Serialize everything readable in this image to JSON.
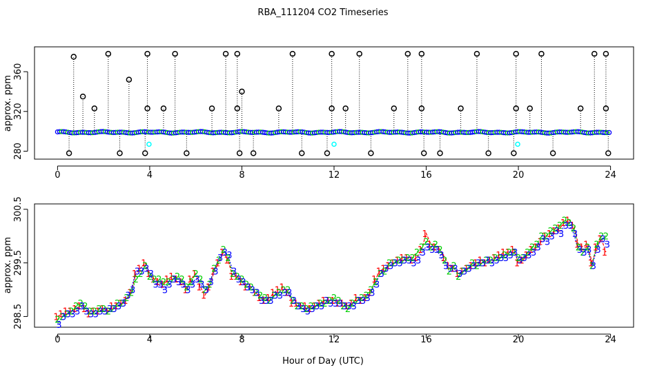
{
  "chart_data": {
    "title": "RBA_111204  CO2 Timeseries",
    "xlabel": "Hour of Day (UTC)",
    "colors": {
      "axis": "#000000",
      "series1": "#ff0000",
      "series2": "#00cc00",
      "series3": "#0000ff",
      "flag": "#00ffff",
      "outlier": "#000000"
    },
    "panels": [
      {
        "type": "scatter",
        "ylabel": "approx. ppm",
        "xlim": [
          -1,
          25
        ],
        "ylim": [
          272,
          385
        ],
        "xticks": [
          0,
          4,
          8,
          12,
          16,
          20,
          24
        ],
        "yticks": [
          280,
          320,
          360
        ],
        "baseline": 299,
        "high_spikes": [
          [
            0.7,
            375
          ],
          [
            1.1,
            335
          ],
          [
            1.6,
            323
          ],
          [
            2.2,
            378
          ],
          [
            3.1,
            352
          ],
          [
            3.9,
            378
          ],
          [
            3.9,
            323
          ],
          [
            4.6,
            323
          ],
          [
            5.1,
            378
          ],
          [
            6.7,
            323
          ],
          [
            7.3,
            378
          ],
          [
            7.8,
            378
          ],
          [
            7.8,
            323
          ],
          [
            8.0,
            340
          ],
          [
            9.6,
            323
          ],
          [
            10.2,
            378
          ],
          [
            11.9,
            378
          ],
          [
            11.9,
            323
          ],
          [
            12.5,
            323
          ],
          [
            13.1,
            378
          ],
          [
            14.6,
            323
          ],
          [
            15.2,
            378
          ],
          [
            15.8,
            378
          ],
          [
            15.8,
            323
          ],
          [
            17.5,
            323
          ],
          [
            18.2,
            378
          ],
          [
            19.9,
            378
          ],
          [
            19.9,
            323
          ],
          [
            20.5,
            323
          ],
          [
            21.0,
            378
          ],
          [
            22.7,
            323
          ],
          [
            23.3,
            378
          ],
          [
            23.8,
            378
          ],
          [
            23.8,
            323
          ]
        ],
        "low_spikes": [
          [
            0.5,
            278
          ],
          [
            2.7,
            278
          ],
          [
            3.8,
            278
          ],
          [
            5.6,
            278
          ],
          [
            7.9,
            278
          ],
          [
            8.5,
            278
          ],
          [
            10.6,
            278
          ],
          [
            11.7,
            278
          ],
          [
            13.6,
            278
          ],
          [
            15.9,
            278
          ],
          [
            16.6,
            278
          ],
          [
            18.7,
            278
          ],
          [
            19.8,
            278
          ],
          [
            21.5,
            278
          ],
          [
            23.9,
            278
          ]
        ],
        "flagged_points": [
          [
            3.97,
            287
          ],
          [
            12.0,
            287
          ],
          [
            19.97,
            287
          ]
        ],
        "mark_legend": [
          "o",
          "o",
          "o"
        ]
      },
      {
        "type": "line",
        "ylabel": "approx. ppm",
        "xlim": [
          -1,
          25
        ],
        "ylim": [
          298.3,
          300.6
        ],
        "xticks": [
          0,
          4,
          8,
          12,
          16,
          20,
          24
        ],
        "yticks": [
          298.5,
          299.5,
          300.5
        ],
        "ytick_labels": [
          "298.5",
          "299.5",
          "300.5"
        ],
        "series_labels": [
          "1",
          "2",
          "3"
        ],
        "x": [
          0,
          0.2,
          0.4,
          0.6,
          0.8,
          1.0,
          1.2,
          1.4,
          1.6,
          1.8,
          2.0,
          2.2,
          2.4,
          2.6,
          2.8,
          3.0,
          3.2,
          3.4,
          3.6,
          3.8,
          4.0,
          4.2,
          4.4,
          4.6,
          4.8,
          5.0,
          5.2,
          5.4,
          5.6,
          5.8,
          6.0,
          6.2,
          6.4,
          6.6,
          6.8,
          7.0,
          7.2,
          7.4,
          7.6,
          7.8,
          8.0,
          8.2,
          8.4,
          8.6,
          8.8,
          9.0,
          9.2,
          9.4,
          9.6,
          9.8,
          10.0,
          10.2,
          10.4,
          10.6,
          10.8,
          11.0,
          11.2,
          11.4,
          11.6,
          11.8,
          12.0,
          12.2,
          12.4,
          12.6,
          12.8,
          13.0,
          13.2,
          13.4,
          13.6,
          13.8,
          14.0,
          14.2,
          14.4,
          14.6,
          14.8,
          15.0,
          15.2,
          15.4,
          15.6,
          15.8,
          16.0,
          16.2,
          16.4,
          16.6,
          16.8,
          17.0,
          17.2,
          17.4,
          17.6,
          17.8,
          18.0,
          18.2,
          18.4,
          18.6,
          18.8,
          19.0,
          19.2,
          19.4,
          19.6,
          19.8,
          20.0,
          20.2,
          20.4,
          20.6,
          20.8,
          21.0,
          21.2,
          21.4,
          21.6,
          21.8,
          22.0,
          22.2,
          22.4,
          22.6,
          22.8,
          23.0,
          23.2,
          23.4,
          23.6,
          23.8
        ],
        "series": [
          {
            "name": "1",
            "values": [
              298.5,
              298.55,
              298.6,
              298.6,
              298.65,
              298.7,
              298.65,
              298.55,
              298.6,
              298.6,
              298.65,
              298.6,
              298.7,
              298.7,
              298.75,
              298.8,
              298.95,
              299.3,
              299.4,
              299.5,
              299.3,
              299.2,
              299.15,
              299.1,
              299.2,
              299.25,
              299.2,
              299.15,
              299.0,
              299.2,
              299.3,
              299.05,
              298.9,
              299.05,
              299.35,
              299.5,
              299.7,
              299.55,
              299.25,
              299.25,
              299.15,
              299.05,
              299.05,
              298.95,
              298.85,
              298.8,
              298.85,
              298.95,
              299.0,
              299.05,
              298.95,
              298.75,
              298.75,
              298.7,
              298.7,
              298.65,
              298.7,
              298.75,
              298.8,
              298.8,
              298.8,
              298.75,
              298.75,
              298.7,
              298.75,
              298.85,
              298.8,
              298.85,
              298.95,
              299.2,
              299.35,
              299.4,
              299.45,
              299.5,
              299.55,
              299.6,
              299.6,
              299.55,
              299.6,
              299.75,
              300.05,
              299.85,
              299.8,
              299.75,
              299.6,
              299.45,
              299.4,
              299.3,
              299.35,
              299.4,
              299.45,
              299.5,
              299.55,
              299.5,
              299.55,
              299.6,
              299.65,
              299.7,
              299.7,
              299.75,
              299.5,
              299.55,
              299.65,
              299.75,
              299.8,
              299.9,
              300.0,
              300.05,
              300.1,
              300.15,
              300.25,
              300.3,
              300.2,
              299.85,
              299.8,
              299.85,
              299.5,
              299.8,
              299.95,
              299.7
            ]
          },
          {
            "name": "2",
            "values": [
              298.45,
              298.5,
              298.55,
              298.6,
              298.7,
              298.75,
              298.7,
              298.6,
              298.6,
              298.65,
              298.65,
              298.6,
              298.65,
              298.75,
              298.75,
              298.85,
              298.95,
              299.2,
              299.3,
              299.45,
              299.25,
              299.2,
              299.2,
              299.15,
              299.15,
              299.2,
              299.25,
              299.2,
              299.05,
              299.15,
              299.3,
              299.2,
              299.0,
              299.1,
              299.4,
              299.55,
              299.75,
              299.6,
              299.3,
              299.25,
              299.2,
              299.1,
              299.05,
              298.95,
              298.9,
              298.85,
              298.8,
              298.9,
              298.95,
              299.0,
              299.0,
              298.8,
              298.7,
              298.7,
              298.65,
              298.7,
              298.7,
              298.75,
              298.75,
              298.8,
              298.85,
              298.8,
              298.7,
              298.65,
              298.75,
              298.8,
              298.85,
              298.9,
              299.0,
              299.15,
              299.3,
              299.35,
              299.5,
              299.5,
              299.55,
              299.55,
              299.6,
              299.6,
              299.7,
              299.8,
              299.9,
              299.8,
              299.85,
              299.75,
              299.55,
              299.35,
              299.45,
              299.25,
              299.35,
              299.4,
              299.5,
              299.45,
              299.5,
              299.55,
              299.55,
              299.6,
              299.6,
              299.65,
              299.7,
              299.7,
              299.6,
              299.6,
              299.7,
              299.8,
              299.85,
              300.0,
              300.0,
              300.1,
              300.15,
              300.2,
              300.3,
              300.25,
              300.15,
              299.8,
              299.7,
              299.8,
              299.45,
              299.85,
              300.0,
              300.0
            ]
          },
          {
            "name": "3",
            "values": [
              298.35,
              298.5,
              298.55,
              298.55,
              298.6,
              298.7,
              298.6,
              298.55,
              298.55,
              298.6,
              298.6,
              298.65,
              298.65,
              298.7,
              298.75,
              298.9,
              299.0,
              299.35,
              299.35,
              299.4,
              299.3,
              299.1,
              299.1,
              299.0,
              299.1,
              299.2,
              299.15,
              299.1,
              299.0,
              299.1,
              299.2,
              299.1,
              299.0,
              299.15,
              299.35,
              299.6,
              299.7,
              299.65,
              299.35,
              299.2,
              299.15,
              299.05,
              299.0,
              298.95,
              298.8,
              298.8,
              298.8,
              298.9,
              298.9,
              298.95,
              298.95,
              298.8,
              298.7,
              298.65,
              298.6,
              298.65,
              298.7,
              298.7,
              298.8,
              298.75,
              298.75,
              298.75,
              298.7,
              298.7,
              298.7,
              298.8,
              298.8,
              298.85,
              298.95,
              299.1,
              299.3,
              299.4,
              299.45,
              299.5,
              299.5,
              299.55,
              299.55,
              299.5,
              299.55,
              299.7,
              299.8,
              299.75,
              299.75,
              299.65,
              299.45,
              299.4,
              299.4,
              299.3,
              299.35,
              299.4,
              299.45,
              299.5,
              299.5,
              299.55,
              299.5,
              299.55,
              299.6,
              299.6,
              299.65,
              299.7,
              299.55,
              299.6,
              299.65,
              299.7,
              299.8,
              299.95,
              299.9,
              300.0,
              300.1,
              300.05,
              300.2,
              300.2,
              300.05,
              299.75,
              299.7,
              299.75,
              299.45,
              299.75,
              299.95,
              299.85
            ]
          }
        ]
      }
    ]
  }
}
